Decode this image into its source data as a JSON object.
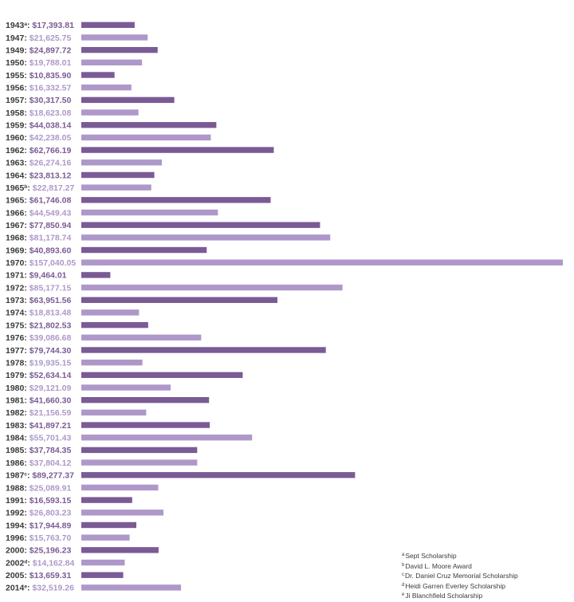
{
  "colors": {
    "dark": "#7a5b95",
    "light": "#ae98c9",
    "text": "#3a3a3a"
  },
  "chart_data": {
    "type": "bar",
    "orientation": "horizontal",
    "xlim": [
      0,
      157040.05
    ],
    "bars": [
      {
        "year": "1943",
        "note": "a",
        "amount": "$17,393.81",
        "value": 17393.81,
        "shade": "dark"
      },
      {
        "year": "1947",
        "note": "",
        "amount": "$21,625.75",
        "value": 21625.75,
        "shade": "light"
      },
      {
        "year": "1949",
        "note": "",
        "amount": "$24,897.72",
        "value": 24897.72,
        "shade": "dark"
      },
      {
        "year": "1950",
        "note": "",
        "amount": "$19,788.01",
        "value": 19788.01,
        "shade": "light"
      },
      {
        "year": "1955",
        "note": "",
        "amount": "$10,835.90",
        "value": 10835.9,
        "shade": "dark"
      },
      {
        "year": "1956",
        "note": "",
        "amount": "$16,332.57",
        "value": 16332.57,
        "shade": "light"
      },
      {
        "year": "1957",
        "note": "",
        "amount": "$30,317.50",
        "value": 30317.5,
        "shade": "dark"
      },
      {
        "year": "1958",
        "note": "",
        "amount": "$18,623.08",
        "value": 18623.08,
        "shade": "light"
      },
      {
        "year": "1959",
        "note": "",
        "amount": "$44,038.14",
        "value": 44038.14,
        "shade": "dark"
      },
      {
        "year": "1960",
        "note": "",
        "amount": "$42,238.05",
        "value": 42238.05,
        "shade": "light"
      },
      {
        "year": "1962",
        "note": "",
        "amount": "$62,766.19",
        "value": 62766.19,
        "shade": "dark"
      },
      {
        "year": "1963",
        "note": "",
        "amount": "$26,274.16",
        "value": 26274.16,
        "shade": "light"
      },
      {
        "year": "1964",
        "note": "",
        "amount": "$23,813.12",
        "value": 23813.12,
        "shade": "dark"
      },
      {
        "year": "1965",
        "note": "b",
        "amount": "$22,817.27",
        "value": 22817.27,
        "shade": "light"
      },
      {
        "year": "1965",
        "note": "",
        "amount": "$61,746.08",
        "value": 61746.08,
        "shade": "dark"
      },
      {
        "year": "1966",
        "note": "",
        "amount": "$44,549.43",
        "value": 44549.43,
        "shade": "light"
      },
      {
        "year": "1967",
        "note": "",
        "amount": "$77,850.94",
        "value": 77850.94,
        "shade": "dark"
      },
      {
        "year": "1968",
        "note": "",
        "amount": "$81,178.74",
        "value": 81178.74,
        "shade": "light"
      },
      {
        "year": "1969",
        "note": "",
        "amount": "$40,893.60",
        "value": 40893.6,
        "shade": "dark"
      },
      {
        "year": "1970",
        "note": "",
        "amount": "$157,040.05",
        "value": 157040.05,
        "shade": "light"
      },
      {
        "year": "1971",
        "note": "",
        "amount": "$9,464.01",
        "value": 9464.01,
        "shade": "dark"
      },
      {
        "year": "1972",
        "note": "",
        "amount": "$85,177.15",
        "value": 85177.15,
        "shade": "light"
      },
      {
        "year": "1973",
        "note": "",
        "amount": "$63,951.56",
        "value": 63951.56,
        "shade": "dark"
      },
      {
        "year": "1974",
        "note": "",
        "amount": "$18,813.48",
        "value": 18813.48,
        "shade": "light"
      },
      {
        "year": "1975",
        "note": "",
        "amount": "$21,802.53",
        "value": 21802.53,
        "shade": "dark"
      },
      {
        "year": "1976",
        "note": "",
        "amount": "$39,086.68",
        "value": 39086.68,
        "shade": "light"
      },
      {
        "year": "1977",
        "note": "",
        "amount": "$79,744.30",
        "value": 79744.3,
        "shade": "dark"
      },
      {
        "year": "1978",
        "note": "",
        "amount": "$19,935.15",
        "value": 19935.15,
        "shade": "light"
      },
      {
        "year": "1979",
        "note": "",
        "amount": "$52,634.14",
        "value": 52634.14,
        "shade": "dark"
      },
      {
        "year": "1980",
        "note": "",
        "amount": "$29,121.09",
        "value": 29121.09,
        "shade": "light"
      },
      {
        "year": "1981",
        "note": "",
        "amount": "$41,660.30",
        "value": 41660.3,
        "shade": "dark"
      },
      {
        "year": "1982",
        "note": "",
        "amount": "$21,156.59",
        "value": 21156.59,
        "shade": "light"
      },
      {
        "year": "1983",
        "note": "",
        "amount": "$41,897.21",
        "value": 41897.21,
        "shade": "dark"
      },
      {
        "year": "1984",
        "note": "",
        "amount": "$55,701.43",
        "value": 55701.43,
        "shade": "light"
      },
      {
        "year": "1985",
        "note": "",
        "amount": "$37,784.35",
        "value": 37784.35,
        "shade": "dark"
      },
      {
        "year": "1986",
        "note": "",
        "amount": "$37,804.12",
        "value": 37804.12,
        "shade": "light"
      },
      {
        "year": "1987",
        "note": "c",
        "amount": "$89,277.37",
        "value": 89277.37,
        "shade": "dark"
      },
      {
        "year": "1988",
        "note": "",
        "amount": "$25,089.91",
        "value": 25089.91,
        "shade": "light"
      },
      {
        "year": "1991",
        "note": "",
        "amount": "$16,593.15",
        "value": 16593.15,
        "shade": "dark"
      },
      {
        "year": "1992",
        "note": "",
        "amount": "$26,803.23",
        "value": 26803.23,
        "shade": "light"
      },
      {
        "year": "1994",
        "note": "",
        "amount": "$17,944.89",
        "value": 17944.89,
        "shade": "dark"
      },
      {
        "year": "1996",
        "note": "",
        "amount": "$15,763.70",
        "value": 15763.7,
        "shade": "light"
      },
      {
        "year": "2000",
        "note": "",
        "amount": "$25,196.23",
        "value": 25196.23,
        "shade": "dark"
      },
      {
        "year": "2002",
        "note": "d",
        "amount": "$14,162.84",
        "value": 14162.84,
        "shade": "light"
      },
      {
        "year": "2005",
        "note": "",
        "amount": "$13,659.31",
        "value": 13659.31,
        "shade": "dark"
      },
      {
        "year": "2014",
        "note": "e",
        "amount": "$32,519.26",
        "value": 32519.26,
        "shade": "light"
      }
    ]
  },
  "legend": [
    {
      "mark": "a",
      "text": "Sept Scholarship"
    },
    {
      "mark": "b",
      "text": "David L. Moore Award"
    },
    {
      "mark": "c",
      "text": "Dr. Daniel Cruz Memorial Scholarship"
    },
    {
      "mark": "d",
      "text": "Heidi Garren Everley Scholarship"
    },
    {
      "mark": "e",
      "text": "Ji Blanchfield Scholarship"
    }
  ]
}
